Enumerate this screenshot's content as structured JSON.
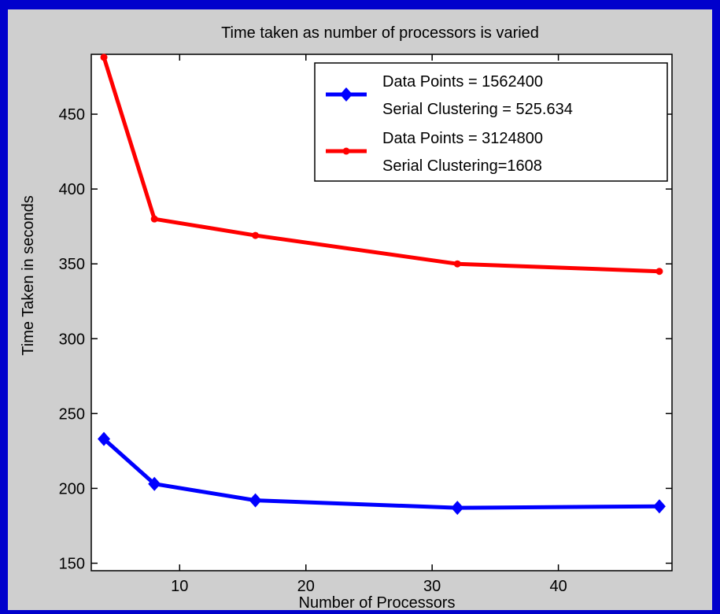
{
  "chart_data": {
    "type": "line",
    "title": "Time taken as number of processors is varied",
    "xlabel": "Number of Processors",
    "ylabel": "Time Taken in seconds",
    "xlim": [
      3,
      49
    ],
    "ylim": [
      145,
      490
    ],
    "xticks": [
      10,
      20,
      30,
      40
    ],
    "yticks": [
      150,
      200,
      250,
      300,
      350,
      400,
      450
    ],
    "grid": false,
    "legend_position": "top-right",
    "series": [
      {
        "legend_lines": [
          "Data Points = 1562400",
          " Serial Clustering = 525.634"
        ],
        "color": "#0000ff",
        "marker": "diamond",
        "x": [
          4,
          8,
          16,
          32,
          48
        ],
        "y": [
          233,
          203,
          192,
          187,
          188
        ]
      },
      {
        "legend_lines": [
          "Data Points = 3124800",
          " Serial Clustering=1608"
        ],
        "color": "#ff0000",
        "marker": "dot",
        "x": [
          4,
          8,
          16,
          32,
          48
        ],
        "y": [
          488,
          380,
          369,
          350,
          345
        ]
      }
    ]
  }
}
